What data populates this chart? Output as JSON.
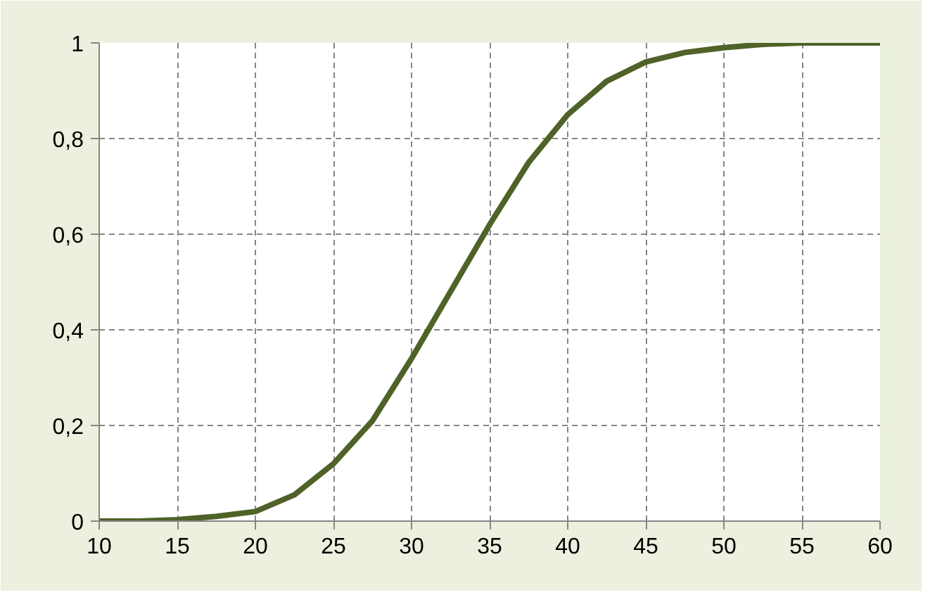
{
  "chart_data": {
    "type": "line",
    "x": [
      10,
      12.5,
      15,
      17.5,
      20,
      22.5,
      25,
      27.5,
      30,
      32.5,
      35,
      37.5,
      40,
      42.5,
      45,
      47.5,
      50,
      52.5,
      55,
      57.5,
      60
    ],
    "series": [
      {
        "color": "#4f6228",
        "values": [
          0,
          0,
          0.003,
          0.01,
          0.02,
          0.055,
          0.12,
          0.21,
          0.34,
          0.48,
          0.62,
          0.75,
          0.85,
          0.92,
          0.96,
          0.98,
          0.99,
          0.997,
          1,
          1,
          1
        ]
      }
    ],
    "xlim": [
      10,
      60
    ],
    "ylim": [
      0,
      1
    ],
    "xticks": [
      10,
      15,
      20,
      25,
      30,
      35,
      40,
      45,
      50,
      55,
      60
    ],
    "yticks": [
      0,
      {
        "value": 0.2,
        "label": "0,2"
      },
      {
        "value": 0.4,
        "label": "0,4"
      },
      {
        "value": 0.6,
        "label": "0,6"
      },
      {
        "value": 0.8,
        "label": "0,8"
      },
      1
    ],
    "grid": true,
    "line_style": "solid"
  }
}
